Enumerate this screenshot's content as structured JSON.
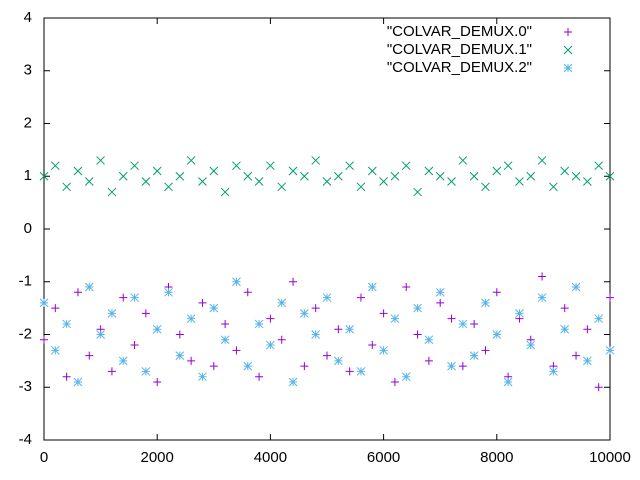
{
  "chart_data": {
    "type": "scatter",
    "x": [
      0,
      200,
      400,
      600,
      800,
      1000,
      1200,
      1400,
      1600,
      1800,
      2000,
      2200,
      2400,
      2600,
      2800,
      3000,
      3200,
      3400,
      3600,
      3800,
      4000,
      4200,
      4400,
      4600,
      4800,
      5000,
      5200,
      5400,
      5600,
      5800,
      6000,
      6200,
      6400,
      6600,
      6800,
      7000,
      7200,
      7400,
      7600,
      7800,
      8000,
      8200,
      8400,
      8600,
      8800,
      9000,
      9200,
      9400,
      9600,
      9800,
      10000
    ],
    "series": [
      {
        "name": "\"COLVAR_DEMUX.0\"",
        "color": "#9400d3",
        "marker": "plus",
        "values": [
          -2.1,
          -1.5,
          -2.8,
          -1.2,
          -2.4,
          -1.9,
          -2.7,
          -1.3,
          -2.2,
          -1.6,
          -2.9,
          -1.1,
          -2.0,
          -2.5,
          -1.4,
          -2.6,
          -1.8,
          -2.3,
          -1.2,
          -2.8,
          -1.7,
          -2.1,
          -1.0,
          -2.6,
          -1.5,
          -2.4,
          -1.9,
          -2.7,
          -1.3,
          -2.2,
          -1.6,
          -2.9,
          -1.1,
          -2.0,
          -2.5,
          -1.4,
          -1.7,
          -2.6,
          -1.8,
          -2.3,
          -1.2,
          -2.8,
          -1.7,
          -2.1,
          -0.9,
          -2.6,
          -1.5,
          -2.4,
          -1.9,
          -3.0,
          -1.3
        ]
      },
      {
        "name": "\"COLVAR_DEMUX.1\"",
        "color": "#009e73",
        "marker": "cross",
        "values": [
          1.0,
          1.2,
          0.8,
          1.1,
          0.9,
          1.3,
          0.7,
          1.0,
          1.2,
          0.9,
          1.1,
          0.8,
          1.0,
          1.3,
          0.9,
          1.1,
          0.7,
          1.2,
          1.0,
          0.9,
          1.2,
          0.8,
          1.1,
          1.0,
          1.3,
          0.9,
          1.0,
          1.2,
          0.8,
          1.1,
          0.9,
          1.0,
          1.2,
          0.7,
          1.1,
          1.0,
          0.9,
          1.3,
          1.0,
          0.8,
          1.1,
          1.2,
          0.9,
          1.0,
          1.3,
          0.8,
          1.1,
          1.0,
          0.9,
          1.2,
          1.0
        ]
      },
      {
        "name": "\"COLVAR_DEMUX.2\"",
        "color": "#56b4e9",
        "marker": "star",
        "values": [
          -1.4,
          -2.3,
          -1.8,
          -2.9,
          -1.1,
          -2.0,
          -1.6,
          -2.5,
          -1.3,
          -2.7,
          -1.9,
          -1.2,
          -2.4,
          -1.7,
          -2.8,
          -1.5,
          -2.1,
          -1.0,
          -2.6,
          -1.8,
          -2.2,
          -1.4,
          -2.9,
          -1.6,
          -2.0,
          -1.3,
          -2.5,
          -1.9,
          -2.7,
          -1.1,
          -2.3,
          -1.7,
          -2.8,
          -1.5,
          -2.1,
          -1.2,
          -2.6,
          -1.8,
          -2.4,
          -1.4,
          -2.0,
          -2.9,
          -1.6,
          -2.2,
          -1.3,
          -2.7,
          -1.9,
          -1.1,
          -2.5,
          -1.7,
          -2.3
        ]
      }
    ],
    "xlim": [
      0,
      10000
    ],
    "xticks": [
      0,
      2000,
      4000,
      6000,
      8000,
      10000
    ],
    "ylim": [
      -4,
      4
    ],
    "yticks": [
      -4,
      -3,
      -2,
      -1,
      0,
      1,
      2,
      3,
      4
    ],
    "legend": "top-right"
  }
}
